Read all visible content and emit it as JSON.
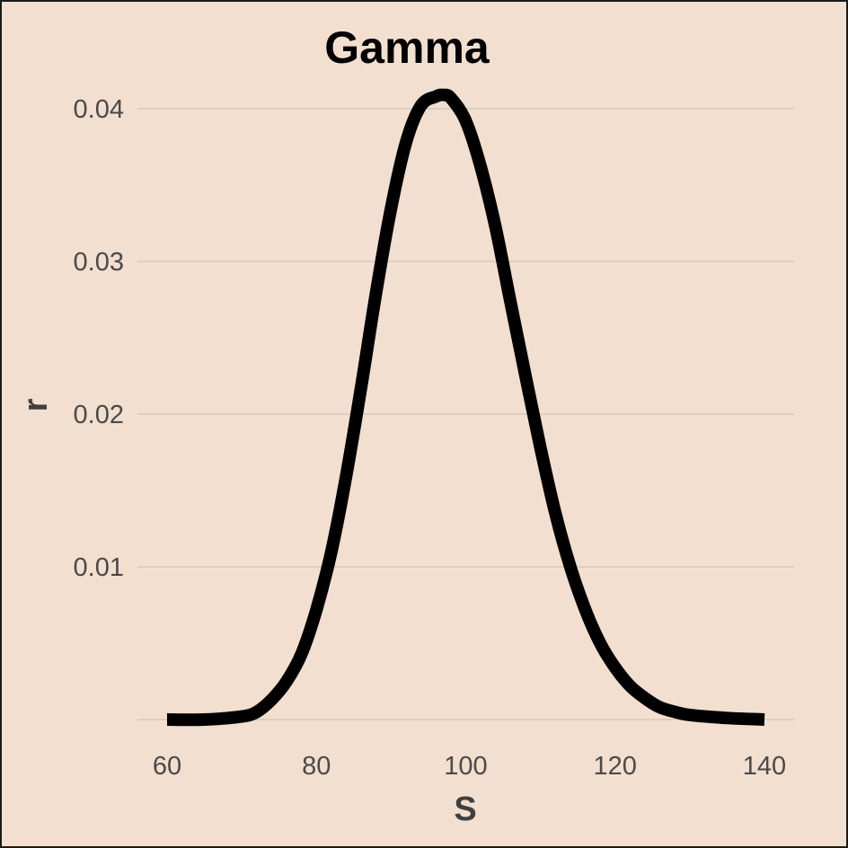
{
  "chart_data": {
    "type": "line",
    "title": "Gamma",
    "xlabel": "S",
    "ylabel": "r",
    "xlim": [
      60,
      140
    ],
    "ylim": [
      0,
      0.04
    ],
    "x_ticks": [
      "60",
      "80",
      "100",
      "120",
      "140"
    ],
    "y_ticks": [
      "0.01",
      "0.02",
      "0.03",
      "0.04"
    ],
    "grid": "horizontal",
    "series": [
      {
        "color": "#000000",
        "x": [
          60,
          65,
          70,
          72,
          74,
          76,
          78,
          80,
          82,
          84,
          86,
          88,
          90,
          92,
          94,
          96,
          97,
          98,
          100,
          102,
          104,
          106,
          108,
          110,
          112,
          114,
          116,
          118,
          120,
          122,
          124,
          126,
          128,
          130,
          135,
          140
        ],
        "y": [
          0.0,
          0.0,
          0.0002,
          0.0005,
          0.0013,
          0.0025,
          0.0043,
          0.0072,
          0.011,
          0.016,
          0.0218,
          0.028,
          0.0335,
          0.0378,
          0.0402,
          0.0408,
          0.0409,
          0.0407,
          0.0392,
          0.0362,
          0.0322,
          0.0273,
          0.0225,
          0.0178,
          0.0135,
          0.01,
          0.0072,
          0.005,
          0.0034,
          0.0022,
          0.0014,
          0.0008,
          0.0005,
          0.0003,
          0.0001,
          0.0
        ]
      }
    ]
  }
}
